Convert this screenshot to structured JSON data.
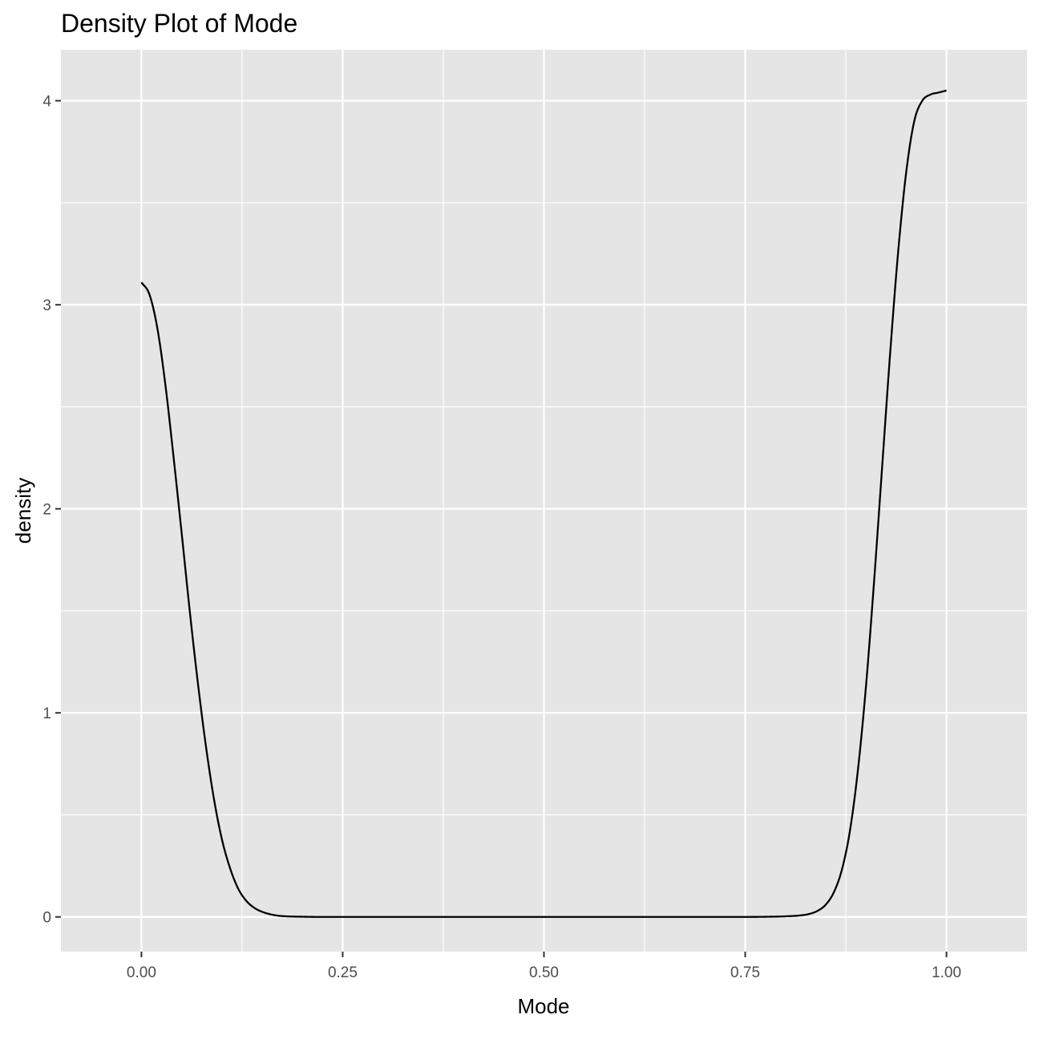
{
  "chart_data": {
    "type": "line",
    "title": "Density Plot of Mode",
    "xlabel": "Mode",
    "ylabel": "density",
    "xlim": [
      -0.1,
      1.1
    ],
    "ylim": [
      -0.17,
      4.25
    ],
    "x_ticks": [
      0.0,
      0.25,
      0.5,
      0.75,
      1.0
    ],
    "x_tick_labels": [
      "0.00",
      "0.25",
      "0.50",
      "0.75",
      "1.00"
    ],
    "y_ticks": [
      0,
      1,
      2,
      3,
      4
    ],
    "y_tick_labels": [
      "0",
      "1",
      "2",
      "3",
      "4"
    ],
    "grid": true,
    "panel_background": "#e5e5e5",
    "grid_color": "#ffffff",
    "line_color": "#000000",
    "series": [
      {
        "x": [
          0.0,
          0.01,
          0.02,
          0.03,
          0.04,
          0.05,
          0.06,
          0.07,
          0.08,
          0.09,
          0.1,
          0.11,
          0.12,
          0.13,
          0.14,
          0.15,
          0.16,
          0.17,
          0.18,
          0.2,
          0.22,
          0.25,
          0.3,
          0.4,
          0.5,
          0.6,
          0.7,
          0.75,
          0.78,
          0.8,
          0.82,
          0.83,
          0.84,
          0.85,
          0.86,
          0.87,
          0.88,
          0.89,
          0.9,
          0.91,
          0.92,
          0.93,
          0.94,
          0.95,
          0.96,
          0.97,
          0.98,
          0.99,
          1.0
        ],
        "y": [
          3.11,
          3.05,
          2.88,
          2.6,
          2.25,
          1.88,
          1.5,
          1.15,
          0.84,
          0.58,
          0.38,
          0.24,
          0.14,
          0.08,
          0.045,
          0.025,
          0.013,
          0.006,
          0.003,
          0.001,
          0.0,
          0.0,
          0.0,
          0.0,
          0.0,
          0.0,
          0.0,
          0.0,
          0.001,
          0.003,
          0.008,
          0.015,
          0.03,
          0.06,
          0.12,
          0.23,
          0.42,
          0.72,
          1.13,
          1.64,
          2.2,
          2.76,
          3.26,
          3.65,
          3.9,
          4.0,
          4.03,
          4.04,
          4.05
        ]
      }
    ]
  }
}
